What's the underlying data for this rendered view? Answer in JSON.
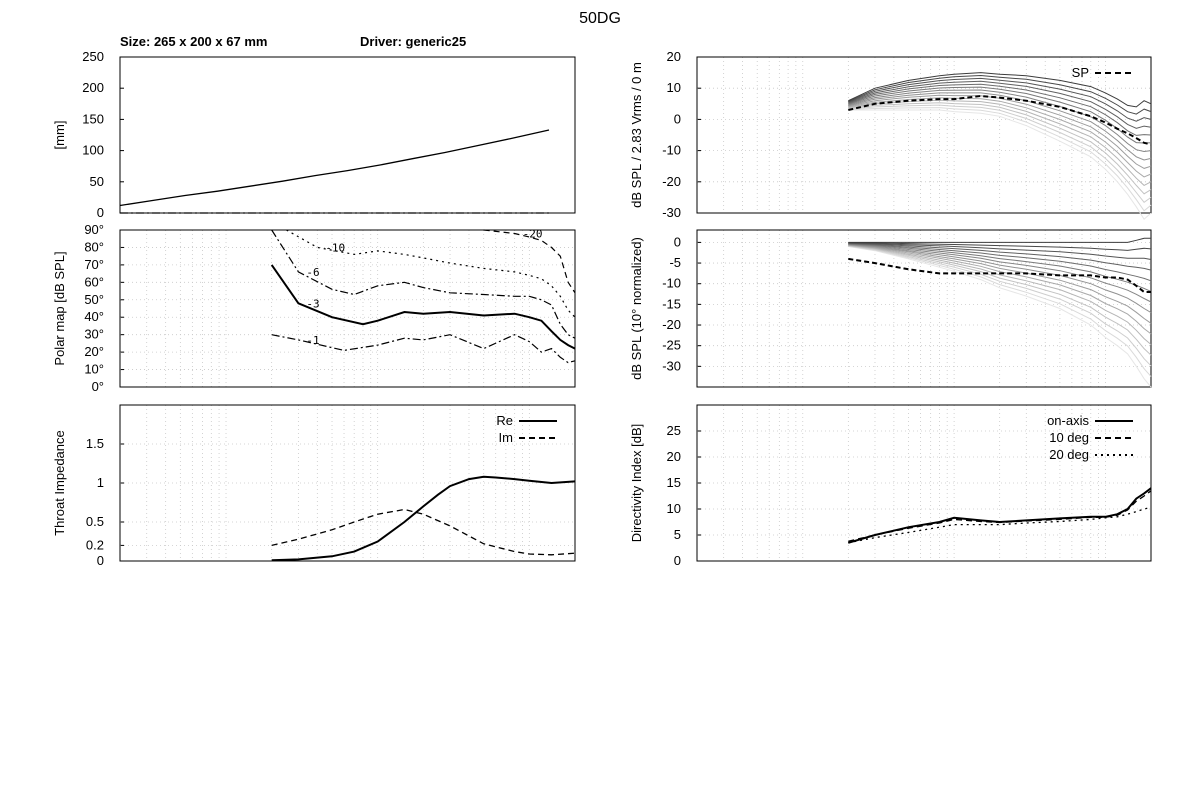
{
  "title": "50DG",
  "header": {
    "size_label": "Size: 265 x 200 x 67 mm",
    "driver_label": "Driver: generic25"
  },
  "chart_data": [
    {
      "id": "profile",
      "type": "line",
      "ylabel": "[mm]",
      "yticks": [
        "250",
        "200",
        "150",
        "100",
        "50",
        "0"
      ],
      "ylim": [
        0,
        250
      ],
      "xlim": [
        0,
        140
      ],
      "grid": false,
      "series": [
        {
          "style": "solid",
          "x": [
            0,
            10,
            20,
            30,
            40,
            50,
            60,
            70,
            80,
            90,
            100,
            110,
            120,
            132
          ],
          "y": [
            12,
            20,
            28,
            35,
            43,
            51,
            60,
            68,
            77,
            87,
            97,
            108,
            119,
            133
          ]
        },
        {
          "style": "dashdot",
          "x": [
            0,
            132
          ],
          "y": [
            0,
            0
          ]
        }
      ]
    },
    {
      "id": "spl",
      "type": "line",
      "ylabel": "dB SPL / 2.83 Vrms / 0 m",
      "yticks": [
        "20",
        "10",
        "0",
        "-10",
        "-20",
        "-30"
      ],
      "ylim": [
        -30,
        20
      ],
      "xscale": "log",
      "xlim": [
        20,
        20000
      ],
      "grid": true,
      "legend": [
        {
          "label": "SP",
          "style": "dashed"
        }
      ],
      "curves": {
        "freq": [
          200,
          300,
          500,
          800,
          1000,
          1500,
          2000,
          3000,
          5000,
          8000,
          10000,
          12000,
          14000,
          16000,
          18000,
          20000
        ],
        "on_axis": [
          6,
          10,
          12.5,
          14,
          14.5,
          15,
          14.5,
          14,
          12.5,
          10.5,
          8.5,
          6.5,
          4.5,
          4,
          6,
          5
        ],
        "off_axis_end": [
          3,
          3,
          3,
          3,
          2.5,
          2,
          1,
          -2,
          -7,
          -12,
          -16,
          -20,
          -24,
          -28,
          -32,
          -30
        ],
        "sp": [
          3,
          5,
          6,
          6.5,
          6.5,
          7.5,
          7,
          6,
          4,
          1,
          -1,
          -3,
          -4.5,
          -6,
          -7.5,
          -8
        ]
      }
    },
    {
      "id": "polar",
      "type": "contour",
      "ylabel": "Polar map [dB SPL]",
      "yticks": [
        "90°",
        "80°",
        "70°",
        "60°",
        "50°",
        "40°",
        "30°",
        "20°",
        "10°",
        "0°"
      ],
      "ylim": [
        0,
        90
      ],
      "xscale": "log",
      "xlim": [
        20,
        20000
      ],
      "grid": true,
      "contours": [
        {
          "level": "-1",
          "style": "dashdot",
          "freq": [
            200,
            300,
            600,
            1000,
            1500,
            2000,
            3000,
            5000,
            8000,
            10000,
            12000,
            14000,
            16000,
            18000,
            20000
          ],
          "angle": [
            30,
            27,
            21,
            24,
            28,
            27,
            30,
            22,
            30,
            26,
            20,
            22,
            17,
            14,
            15
          ]
        },
        {
          "level": "-3",
          "style": "solid",
          "freq": [
            200,
            300,
            500,
            800,
            1000,
            1500,
            2000,
            3000,
            5000,
            8000,
            10000,
            12000,
            14000,
            16000,
            18000,
            20000
          ],
          "angle": [
            70,
            48,
            40,
            36,
            38,
            43,
            42,
            43,
            41,
            42,
            40,
            38,
            32,
            27,
            24,
            22
          ]
        },
        {
          "level": "-6",
          "style": "dashdot",
          "freq": [
            200,
            300,
            500,
            700,
            1000,
            1500,
            2000,
            3000,
            5000,
            8000,
            10000,
            12000,
            14000,
            16000,
            18000,
            20000
          ],
          "angle": [
            90,
            66,
            56,
            53,
            58,
            60,
            57,
            54,
            53,
            52,
            52,
            50,
            47,
            36,
            30,
            28
          ]
        },
        {
          "level": "-10",
          "style": "dotted",
          "freq": [
            250,
            400,
            700,
            1000,
            1500,
            2000,
            3000,
            5000,
            8000,
            10000,
            12000,
            14000,
            16000,
            18000,
            20000
          ],
          "angle": [
            90,
            80,
            76,
            78,
            76,
            74,
            71,
            68,
            66,
            64,
            62,
            58,
            52,
            44,
            40
          ]
        },
        {
          "level": "-20",
          "style": "dashed",
          "freq": [
            5000,
            8000,
            10000,
            12000,
            14000,
            16000,
            18000,
            20000
          ],
          "angle": [
            90,
            88,
            86,
            84,
            80,
            75,
            60,
            54
          ]
        }
      ]
    },
    {
      "id": "norm",
      "type": "line",
      "ylabel": "dB SPL (10° normalized)",
      "yticks": [
        "0",
        "-5",
        "-10",
        "-15",
        "-20",
        "-25",
        "-30"
      ],
      "ylim": [
        -35,
        3
      ],
      "xscale": "log",
      "xlim": [
        20,
        20000
      ],
      "grid": true,
      "curves": {
        "freq": [
          200,
          300,
          500,
          800,
          1000,
          1500,
          2000,
          3000,
          5000,
          8000,
          10000,
          12000,
          14000,
          16000,
          18000,
          20000
        ],
        "top": [
          0,
          0,
          0,
          0,
          0,
          0,
          0,
          0,
          0,
          0,
          0,
          0,
          0,
          0.5,
          1,
          1
        ],
        "bottom": [
          -1,
          -2,
          -4,
          -6,
          -7,
          -9,
          -11,
          -13,
          -16,
          -20,
          -23,
          -25,
          -27,
          -30,
          -33,
          -35
        ],
        "sp": [
          -4,
          -5,
          -6.5,
          -7.5,
          -7.5,
          -7.5,
          -7.5,
          -7.5,
          -8,
          -8,
          -8.5,
          -8.5,
          -9,
          -10.5,
          -12,
          -12
        ]
      }
    },
    {
      "id": "impedance",
      "type": "line",
      "ylabel": "Throat Impedance",
      "yticks": [
        "1.5",
        "1",
        "0.5",
        "0.2",
        "0"
      ],
      "ylim": [
        0,
        2
      ],
      "xscale": "log",
      "xlim": [
        20,
        20000
      ],
      "grid": true,
      "legend": [
        {
          "label": "Re",
          "style": "solid"
        },
        {
          "label": "Im",
          "style": "dashed"
        }
      ],
      "series": [
        {
          "name": "Re",
          "style": "solid",
          "x": [
            200,
            300,
            500,
            700,
            1000,
            1500,
            2000,
            2500,
            3000,
            4000,
            5000,
            6000,
            8000,
            10000,
            14000,
            20000
          ],
          "y": [
            0.01,
            0.02,
            0.06,
            0.12,
            0.25,
            0.5,
            0.7,
            0.85,
            0.96,
            1.05,
            1.08,
            1.07,
            1.05,
            1.03,
            1.0,
            1.02
          ]
        },
        {
          "name": "Im",
          "style": "dashed",
          "x": [
            200,
            300,
            500,
            700,
            1000,
            1500,
            2000,
            3000,
            5000,
            8000,
            10000,
            14000,
            20000
          ],
          "y": [
            0.2,
            0.28,
            0.4,
            0.5,
            0.6,
            0.66,
            0.6,
            0.45,
            0.22,
            0.12,
            0.09,
            0.08,
            0.1
          ]
        }
      ]
    },
    {
      "id": "di",
      "type": "line",
      "ylabel": "Directivity Index [dB]",
      "yticks": [
        "25",
        "20",
        "15",
        "10",
        "5",
        "0"
      ],
      "ylim": [
        0,
        30
      ],
      "xscale": "log",
      "xlim": [
        20,
        20000
      ],
      "grid": true,
      "legend": [
        {
          "label": "on-axis",
          "style": "solid"
        },
        {
          "label": "10 deg",
          "style": "dashed"
        },
        {
          "label": "20 deg",
          "style": "dotted"
        }
      ],
      "series": [
        {
          "name": "on-axis",
          "style": "solid",
          "x": [
            200,
            300,
            500,
            800,
            1000,
            1500,
            2000,
            3000,
            5000,
            8000,
            10000,
            12000,
            14000,
            16000,
            18000,
            20000
          ],
          "y": [
            3.5,
            5,
            6.5,
            7.5,
            8.3,
            7.8,
            7.5,
            7.8,
            8.2,
            8.5,
            8.5,
            9,
            10,
            12,
            13,
            14
          ]
        },
        {
          "name": "10 deg",
          "style": "dashed",
          "x": [
            200,
            300,
            500,
            800,
            1000,
            1500,
            2000,
            3000,
            5000,
            8000,
            10000,
            12000,
            14000,
            16000,
            18000,
            20000
          ],
          "y": [
            3.8,
            5,
            6.3,
            7.3,
            8,
            7.6,
            7.4,
            7.7,
            8,
            8.4,
            8.4,
            8.8,
            9.8,
            11.5,
            12.5,
            13.5
          ]
        },
        {
          "name": "20 deg",
          "style": "dotted",
          "x": [
            200,
            300,
            500,
            800,
            1000,
            1500,
            2000,
            3000,
            5000,
            8000,
            10000,
            12000,
            14000,
            16000,
            18000,
            20000
          ],
          "y": [
            3.5,
            4.5,
            5.5,
            6.5,
            7,
            7,
            7,
            7.3,
            7.6,
            8,
            8.3,
            8.5,
            9,
            9.5,
            10,
            10.3
          ]
        }
      ]
    }
  ]
}
